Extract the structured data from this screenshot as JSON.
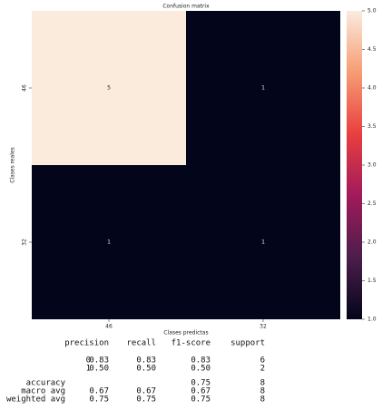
{
  "chart_data": {
    "type": "heatmap",
    "title": "Confusion matrix",
    "x_label": "Clases predictas",
    "y_label": "Clases reales",
    "x_categories": [
      "46",
      "32"
    ],
    "y_categories": [
      "46",
      "32"
    ],
    "values": [
      [
        5,
        1
      ],
      [
        1,
        1
      ]
    ],
    "colormap": [
      "#03051a",
      "#4c1d4b",
      "#a11a5b",
      "#e83f3f",
      "#f69c73",
      "#faebdd"
    ],
    "clim": [
      1,
      5
    ],
    "cticks": [
      {
        "value": 1,
        "label": "1.0"
      },
      1.5,
      {
        "value": 2,
        "label": "2.0"
      },
      2.5,
      {
        "value": 3,
        "label": "3.0"
      },
      3.5,
      {
        "value": 4,
        "label": "4.0"
      },
      4.5,
      {
        "value": 5,
        "label": "5.0"
      }
    ]
  },
  "report": {
    "header": [
      "precision",
      "recall",
      "f1-score",
      "support"
    ],
    "rows": [
      [
        "0",
        "0.83",
        "0.83",
        "0.83",
        "6"
      ],
      [
        "1",
        "0.50",
        "0.50",
        "0.50",
        "2"
      ],
      [
        "accuracy",
        null,
        null,
        "0.75",
        "8"
      ],
      [
        "macro avg",
        "0.67",
        "0.67",
        "0.67",
        "8"
      ],
      [
        "weighted avg",
        "0.75",
        "0.75",
        "0.75",
        "8"
      ]
    ]
  }
}
